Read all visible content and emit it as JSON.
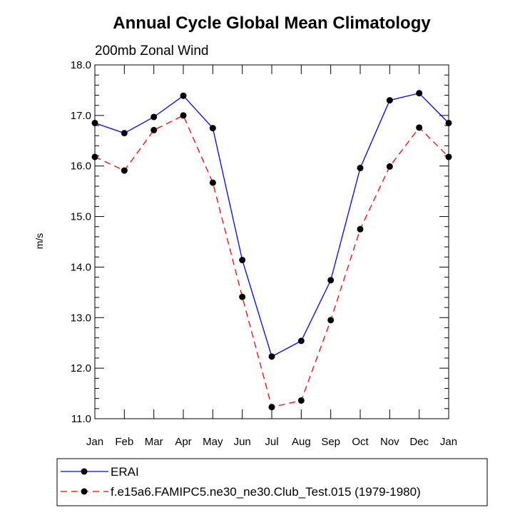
{
  "chart_data": {
    "type": "line",
    "title": "Annual Cycle Global Mean Climatology",
    "subtitle": "200mb Zonal Wind",
    "xlabel": "",
    "ylabel": "m/s",
    "ylim": [
      11.0,
      18.0
    ],
    "y_ticks": [
      "11.0",
      "12.0",
      "13.0",
      "14.0",
      "15.0",
      "16.0",
      "17.0",
      "18.0"
    ],
    "categories": [
      "Jan",
      "Feb",
      "Mar",
      "Apr",
      "May",
      "Jun",
      "Jul",
      "Aug",
      "Sep",
      "Oct",
      "Nov",
      "Dec",
      "Jan"
    ],
    "grid": false,
    "legend_position": "bottom",
    "series": [
      {
        "name": "ERAI",
        "color": "#0000ff",
        "dash": "solid",
        "marker_color": "#000000",
        "values": [
          16.85,
          16.65,
          16.97,
          17.39,
          16.75,
          14.14,
          12.23,
          12.54,
          13.74,
          15.96,
          17.3,
          17.44,
          16.85
        ]
      },
      {
        "name": "f.e15a6.FAMIPC5.ne30_ne30.Club_Test.015 (1979-1980)",
        "color": "#ff0000",
        "dash": "dashed",
        "marker_color": "#000000",
        "values": [
          16.18,
          15.91,
          16.71,
          17.0,
          15.67,
          13.41,
          11.23,
          11.36,
          12.95,
          14.75,
          15.99,
          16.76,
          16.18
        ]
      }
    ]
  }
}
